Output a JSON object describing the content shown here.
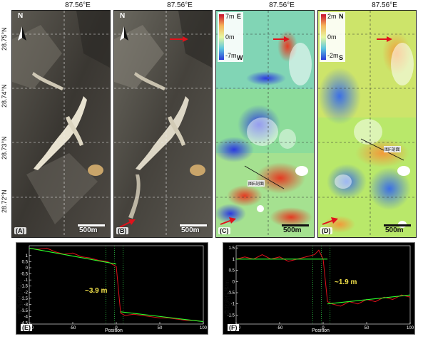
{
  "top_longitude_labels": [
    "87.56°E",
    "87.56°E",
    "87.56°E",
    "87.56°E"
  ],
  "latitude_labels": [
    "28.75°N",
    "28.74°N",
    "28.73°N",
    "28.72°N"
  ],
  "panels": [
    {
      "label": "(A)",
      "scale": "500m",
      "north": "N"
    },
    {
      "label": "(B)",
      "scale": "500m",
      "north": "N"
    },
    {
      "label": "(C)",
      "scale": "500m",
      "profile": "图E剖面",
      "colorbar": {
        "top": "7m",
        "mid": "0m",
        "bottom": "-7m",
        "top_dir": "E",
        "bottom_dir": "W"
      }
    },
    {
      "label": "(D)",
      "scale": "500m",
      "profile": "图F剖面",
      "colorbar": {
        "top": "2m",
        "mid": "0m",
        "bottom": "-2m",
        "top_dir": "N",
        "bottom_dir": "S"
      }
    }
  ],
  "profiles": [
    {
      "label": "(E)",
      "ylabel": "东西向位移/m",
      "xlabel": "Position",
      "annotation": "~3.9 m"
    },
    {
      "label": "(F)",
      "ylabel": "南北向位移/m",
      "xlabel": "Position",
      "annotation": "~1.9 m"
    }
  ],
  "chart_data": [
    {
      "type": "line",
      "ylabel": "东西向位移/m",
      "xlabel": "Position",
      "xlim": [
        -100,
        100
      ],
      "ylim": [
        -4.6,
        1.8
      ],
      "x_ticks": [
        -100,
        -50,
        0,
        50,
        100
      ],
      "y_ticks": [
        1,
        0.5,
        0,
        -0.5,
        -1,
        -1.5,
        -2,
        -2.5,
        -3,
        -3.5,
        -4,
        -4.5
      ],
      "series": [
        {
          "x": [
            -100,
            -90,
            -80,
            -70,
            -60,
            -50,
            -40,
            -30,
            -20,
            -10,
            -5,
            0,
            5,
            10,
            20,
            30,
            40,
            50,
            60,
            70,
            80,
            90,
            100
          ],
          "y": [
            1.6,
            1.5,
            1.6,
            1.3,
            1.1,
            1.2,
            0.9,
            0.8,
            0.6,
            0.5,
            0.3,
            0.1,
            -3.7,
            -3.9,
            -3.8,
            -3.9,
            -4.0,
            -4.1,
            -4.1,
            -4.2,
            -4.3,
            -4.3,
            -4.4
          ]
        },
        {
          "x": [
            -100,
            0
          ],
          "y": [
            1.6,
            0.3
          ]
        },
        {
          "x": [
            5,
            100
          ],
          "y": [
            -3.6,
            -4.4
          ]
        }
      ],
      "annotation": "~3.9 m"
    },
    {
      "type": "line",
      "ylabel": "南北向位移/m",
      "xlabel": "Position",
      "xlim": [
        -100,
        100
      ],
      "ylim": [
        -1.9,
        1.6
      ],
      "x_ticks": [
        -100,
        -50,
        0,
        50,
        100
      ],
      "y_ticks": [
        1.5,
        1,
        0.5,
        0,
        -0.5,
        -1,
        -1.5
      ],
      "series": [
        {
          "x": [
            -100,
            -90,
            -80,
            -70,
            -60,
            -50,
            -40,
            -30,
            -20,
            -10,
            -5,
            0,
            5,
            10,
            20,
            30,
            40,
            50,
            60,
            70,
            80,
            90,
            100
          ],
          "y": [
            1.0,
            1.1,
            1.0,
            1.2,
            1.0,
            1.1,
            0.9,
            1.0,
            1.1,
            1.2,
            1.4,
            1.0,
            -0.9,
            -1.0,
            -1.1,
            -0.9,
            -1.0,
            -0.8,
            -0.9,
            -0.7,
            -0.8,
            -0.6,
            -0.7
          ]
        },
        {
          "x": [
            -100,
            5
          ],
          "y": [
            1.0,
            1.0
          ]
        },
        {
          "x": [
            5,
            100
          ],
          "y": [
            -1.0,
            -0.6
          ]
        }
      ],
      "annotation": "~1.9 m"
    }
  ]
}
